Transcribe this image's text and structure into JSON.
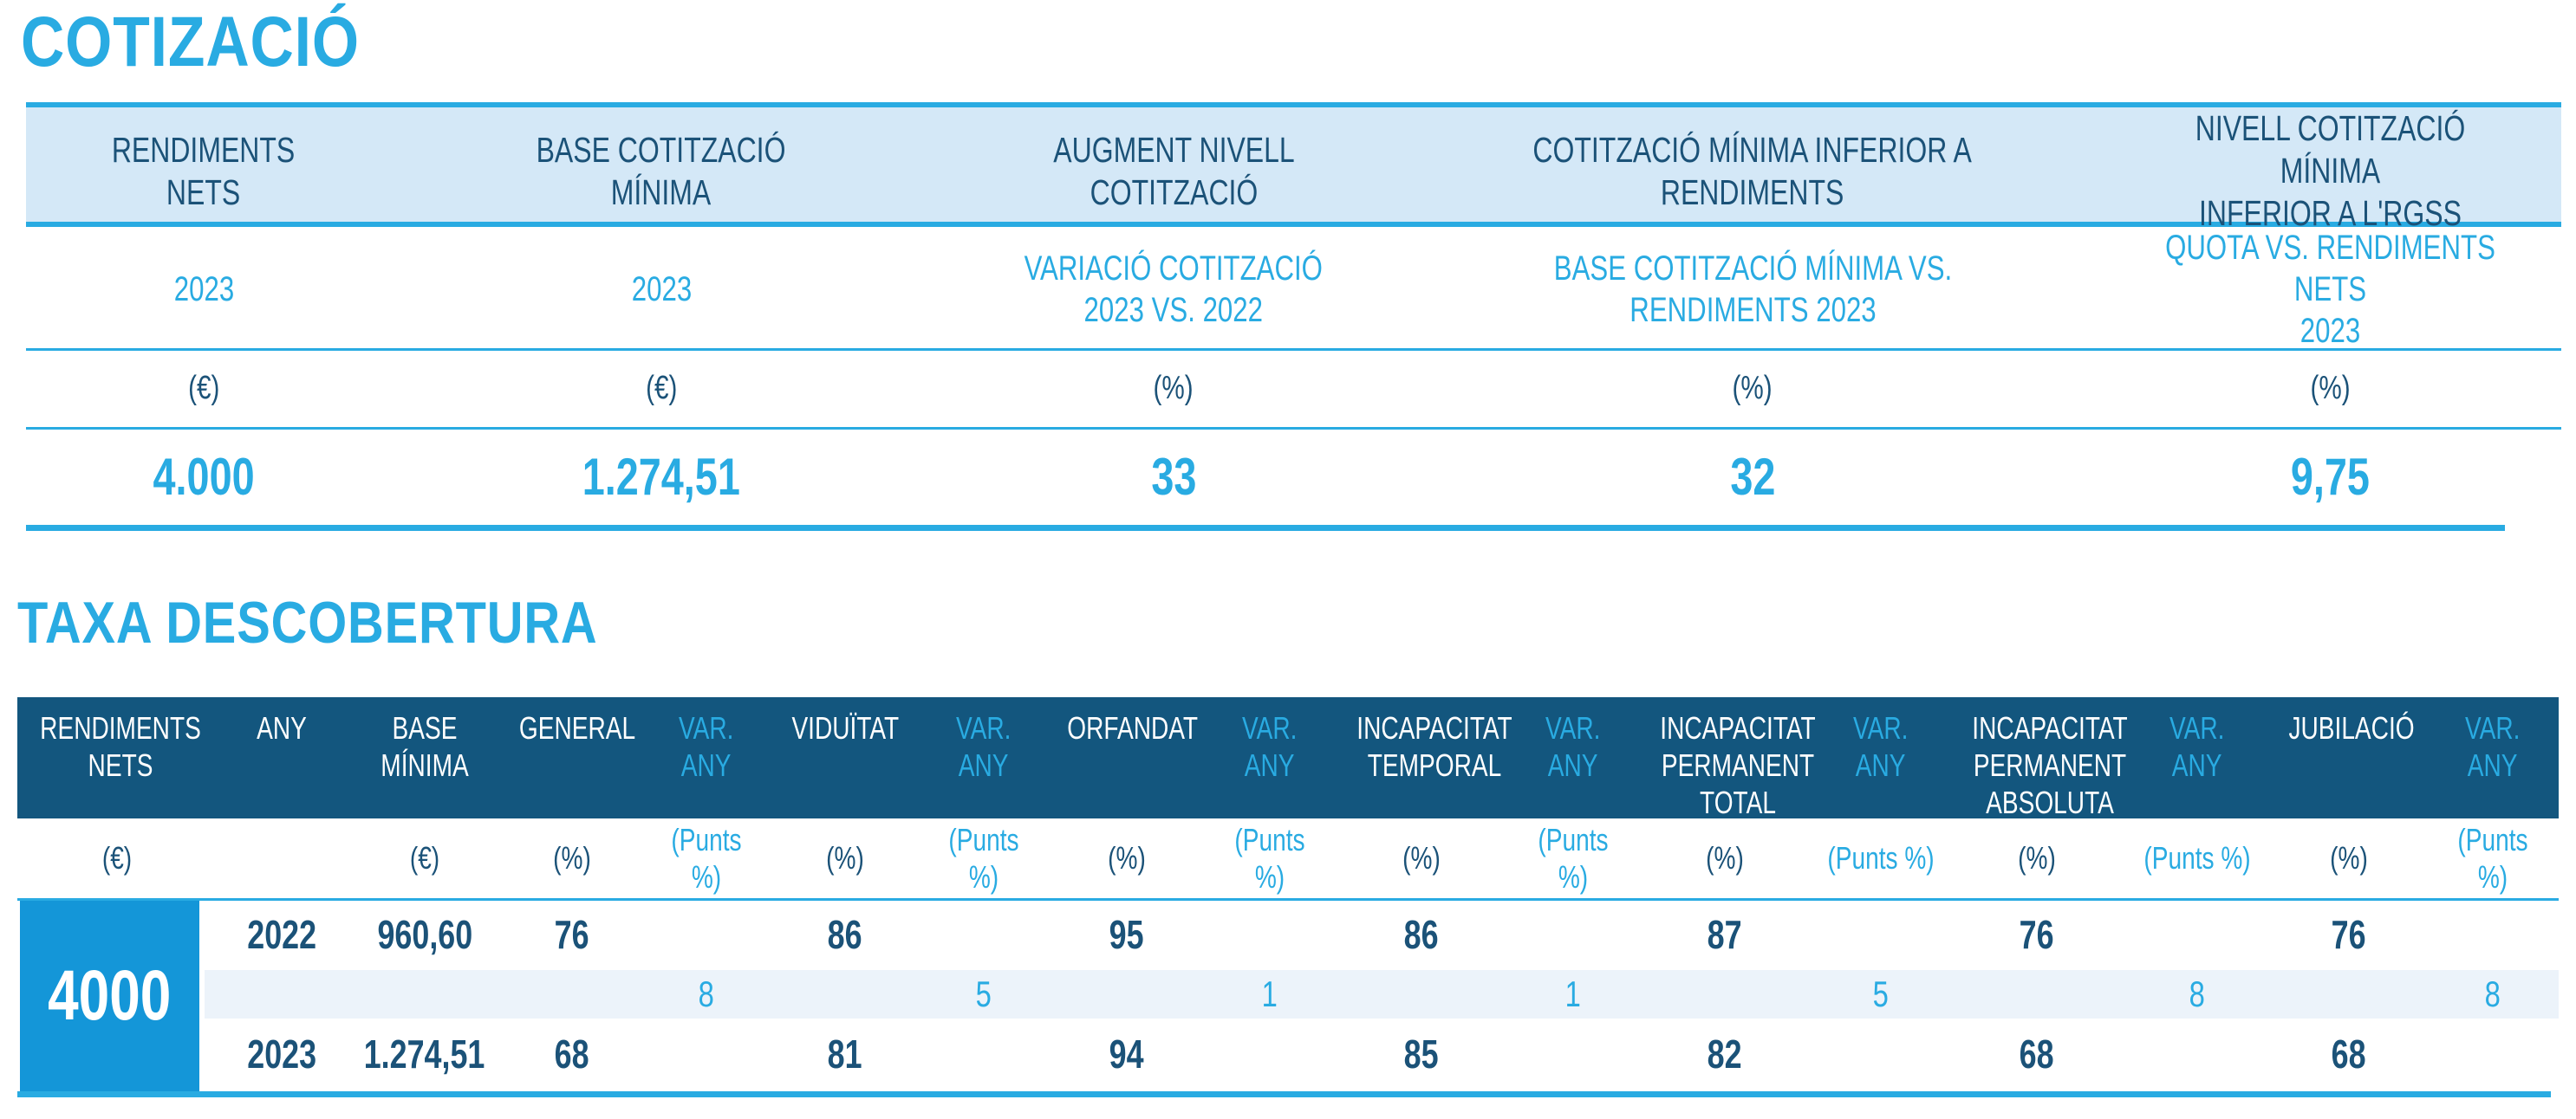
{
  "colors": {
    "accent": "#29abe2",
    "navy_text": "#1b5278",
    "dark_band_bg": "#13567e",
    "light_band_bg": "#d4e8f7",
    "var_row_bg": "#ecf3fa",
    "rendiments_block_bg": "#1496d8"
  },
  "cotitzacio": {
    "title": "COTIZACIÓ",
    "columns": [
      {
        "header": "RENDIMENTS\nNETS",
        "sub": "2023",
        "unit": "(€)",
        "value": "4.000"
      },
      {
        "header": "BASE COTITZACIÓ\nMÍNIMA",
        "sub": "2023",
        "unit": "(€)",
        "value": "1.274,51"
      },
      {
        "header": "AUGMENT NIVELL\nCOTITZACIÓ",
        "sub": "VARIACIÓ COTITZACIÓ\n2023 VS. 2022",
        "unit": "(%)",
        "value": "33"
      },
      {
        "header": "COTITZACIÓ MÍNIMA INFERIOR A\nRENDIMENTS",
        "sub": "BASE COTITZACIÓ MÍNIMA VS.\nRENDIMENTS 2023",
        "unit": "(%)",
        "value": "32"
      },
      {
        "header": "NIVELL COTITZACIÓ MÍNIMA\nINFERIOR A L'RGSS",
        "sub": "QUOTA VS. RENDIMENTS NETS\n2023",
        "unit": "(%)",
        "value": "9,75"
      }
    ]
  },
  "taxa": {
    "title": "TAXA DESCOBERTURA",
    "columns": [
      {
        "label": "RENDIMENTS\nNETS",
        "unit": "(€)"
      },
      {
        "label": "ANY",
        "unit": ""
      },
      {
        "label": "BASE\nMÍNIMA",
        "unit": "(€)"
      },
      {
        "label": "GENERAL",
        "unit": "(%)"
      },
      {
        "label": "VAR.\nANY",
        "unit": "(Punts %)"
      },
      {
        "label": "VIDUÏTAT",
        "unit": "(%)"
      },
      {
        "label": "VAR.\nANY",
        "unit": "(Punts %)"
      },
      {
        "label": "ORFANDAT",
        "unit": "(%)"
      },
      {
        "label": "VAR.\nANY",
        "unit": "(Punts %)"
      },
      {
        "label": "INCAPACITAT\nTEMPORAL",
        "unit": "(%)"
      },
      {
        "label": "VAR.\nANY",
        "unit": "(Punts %)"
      },
      {
        "label": "INCAPACITAT\nPERMANENT\nTOTAL",
        "unit": "(%)"
      },
      {
        "label": "VAR.\nANY",
        "unit": "(Punts %)"
      },
      {
        "label": "INCAPACITAT\nPERMANENT\nABSOLUTA",
        "unit": "(%)"
      },
      {
        "label": "VAR.\nANY",
        "unit": "(Punts %)"
      },
      {
        "label": "JUBILACIÓ",
        "unit": "(%)"
      },
      {
        "label": "VAR.\nANY",
        "unit": "(Punts %)"
      }
    ],
    "rendiments_nets_value": "4000",
    "r2022": {
      "any": "2022",
      "base": "960,60",
      "general": "76",
      "viduitat": "86",
      "orfandat": "95",
      "incTemp": "86",
      "incPermTotal": "87",
      "incPermAbs": "76",
      "jubilacio": "76"
    },
    "rvar": {
      "general": "8",
      "viduitat": "5",
      "orfandat": "1",
      "incTemp": "1",
      "incPermTotal": "5",
      "incPermAbs": "8",
      "jubilacio": "8"
    },
    "r2023": {
      "any": "2023",
      "base": "1.274,51",
      "general": "68",
      "viduitat": "81",
      "orfandat": "94",
      "incTemp": "85",
      "incPermTotal": "82",
      "incPermAbs": "68",
      "jubilacio": "68"
    }
  }
}
